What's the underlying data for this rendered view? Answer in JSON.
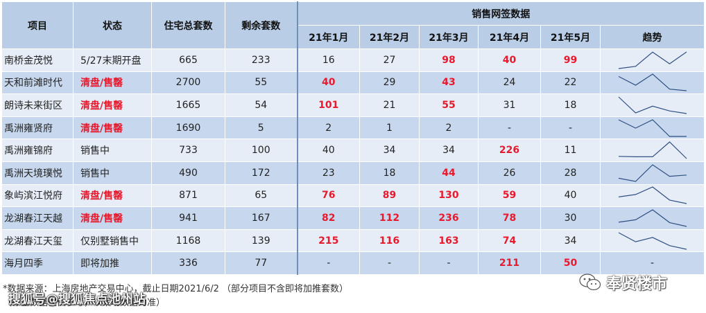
{
  "table": {
    "headers": {
      "project": "项目",
      "status": "状态",
      "total_units": "住宅总套数",
      "remaining_units": "剩余套数",
      "sales_group": "销售网签数据",
      "months": [
        "21年1月",
        "21年2月",
        "21年3月",
        "21年4月",
        "21年5月"
      ],
      "trend": "趋势"
    },
    "rows": [
      {
        "project": "南桥金茂悦",
        "status": "5/27末期开盘",
        "status_red": false,
        "total": "665",
        "remaining": "233",
        "months": [
          {
            "v": "16",
            "red": false
          },
          {
            "v": "27",
            "red": false
          },
          {
            "v": "98",
            "red": true
          },
          {
            "v": "40",
            "red": true
          },
          {
            "v": "99",
            "red": true
          }
        ],
        "trend": [
          16,
          27,
          98,
          40,
          99
        ]
      },
      {
        "project": "天和前滩时代",
        "status": "清盘/售罄",
        "status_red": true,
        "total": "2700",
        "remaining": "55",
        "months": [
          {
            "v": "40",
            "red": true
          },
          {
            "v": "29",
            "red": false
          },
          {
            "v": "43",
            "red": true
          },
          {
            "v": "24",
            "red": false
          },
          {
            "v": "22",
            "red": false
          }
        ],
        "trend": [
          40,
          29,
          43,
          24,
          22
        ]
      },
      {
        "project": "朗诗未来街区",
        "status": "清盘/售罄",
        "status_red": true,
        "total": "1665",
        "remaining": "54",
        "months": [
          {
            "v": "101",
            "red": true
          },
          {
            "v": "21",
            "red": false
          },
          {
            "v": "55",
            "red": true
          },
          {
            "v": "31",
            "red": false
          },
          {
            "v": "18",
            "red": false
          }
        ],
        "trend": [
          101,
          21,
          55,
          31,
          18
        ]
      },
      {
        "project": "禹洲雍贤府",
        "status": "清盘/售罄",
        "status_red": true,
        "total": "1690",
        "remaining": "5",
        "months": [
          {
            "v": "2",
            "red": false
          },
          {
            "v": "1",
            "red": false
          },
          {
            "v": "2",
            "red": false
          },
          {
            "v": "-",
            "red": false
          },
          {
            "v": "-",
            "red": false
          }
        ],
        "trend": [
          2,
          1,
          2,
          0,
          0
        ]
      },
      {
        "project": "禹洲雍锦府",
        "status": "销售中",
        "status_red": false,
        "total": "733",
        "remaining": "100",
        "months": [
          {
            "v": "40",
            "red": false
          },
          {
            "v": "34",
            "red": false
          },
          {
            "v": "34",
            "red": false
          },
          {
            "v": "226",
            "red": true
          },
          {
            "v": "11",
            "red": false
          }
        ],
        "trend": [
          40,
          34,
          34,
          226,
          11
        ]
      },
      {
        "project": "禹洲天境璞悦",
        "status": "销售中",
        "status_red": false,
        "total": "490",
        "remaining": "172",
        "months": [
          {
            "v": "23",
            "red": false
          },
          {
            "v": "18",
            "red": false
          },
          {
            "v": "44",
            "red": true
          },
          {
            "v": "26",
            "red": false
          },
          {
            "v": "28",
            "red": false
          }
        ],
        "trend": [
          23,
          18,
          44,
          26,
          28
        ]
      },
      {
        "project": "象屿滨江悦府",
        "status": "清盘/售罄",
        "status_red": true,
        "total": "871",
        "remaining": "65",
        "months": [
          {
            "v": "76",
            "red": true
          },
          {
            "v": "89",
            "red": true
          },
          {
            "v": "130",
            "red": true
          },
          {
            "v": "59",
            "red": true
          },
          {
            "v": "40",
            "red": false
          }
        ],
        "trend": [
          76,
          89,
          130,
          59,
          40
        ]
      },
      {
        "project": "龙湖春江天越",
        "status": "清盘/售罄",
        "status_red": true,
        "total": "941",
        "remaining": "167",
        "months": [
          {
            "v": "82",
            "red": true
          },
          {
            "v": "112",
            "red": true
          },
          {
            "v": "236",
            "red": true
          },
          {
            "v": "78",
            "red": true
          },
          {
            "v": "30",
            "red": false
          }
        ],
        "trend": [
          82,
          112,
          236,
          78,
          30
        ]
      },
      {
        "project": "龙湖春江天玺",
        "status": "仅别墅销售中",
        "status_red": false,
        "total": "1168",
        "remaining": "139",
        "months": [
          {
            "v": "215",
            "red": true
          },
          {
            "v": "116",
            "red": true
          },
          {
            "v": "163",
            "red": true
          },
          {
            "v": "74",
            "red": true
          },
          {
            "v": "34",
            "red": false
          }
        ],
        "trend": [
          215,
          116,
          163,
          74,
          34
        ]
      },
      {
        "project": "海月四季",
        "status": "即将加推",
        "status_red": false,
        "total": "336",
        "remaining": "77",
        "months": [
          {
            "v": "-",
            "red": false
          },
          {
            "v": "-",
            "red": false
          },
          {
            "v": "-",
            "red": false
          },
          {
            "v": "211",
            "red": true
          },
          {
            "v": "50",
            "red": true
          }
        ],
        "trend": null,
        "trend_text": "-"
      }
    ]
  },
  "footnotes": {
    "line1": "*数据来源：上海房地产交易中心，截止日期2021/6/2 （部分项目不含即将加推套数）",
    "line2": "（存量数据仅供参考，以案场数据为准）"
  },
  "watermarks": {
    "left": "搜狐号@搜狐焦点池州站",
    "right": "奉贤楼市"
  },
  "colors": {
    "header_bg": "#b9cde6",
    "row_light": "#e6edf7",
    "row_dark": "#c6d7ee",
    "highlight_red": "#e8192c",
    "sparkline": "#2f4f82"
  }
}
